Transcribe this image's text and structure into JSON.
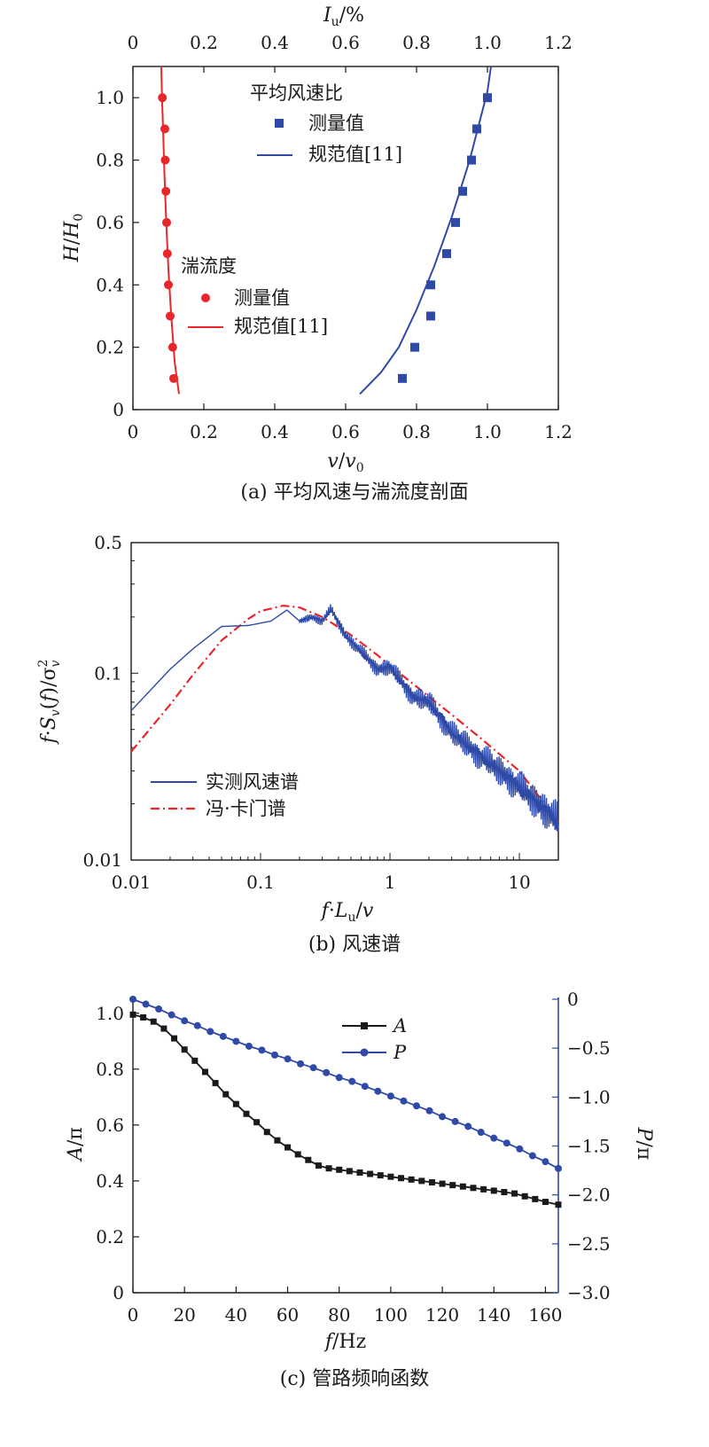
{
  "chart_data": [
    {
      "type": "scatter",
      "caption": "(a) 平均风速与湍流度剖面",
      "xlabel_bottom": "v/v0",
      "xlabel_top": "Iu/%",
      "ylabel": "H/H0",
      "xlim": [
        0,
        1.2
      ],
      "ylim": [
        0,
        1.1
      ],
      "xticks": [
        "0",
        "0.2",
        "0.4",
        "0.6",
        "0.8",
        "1.0",
        "1.2"
      ],
      "yticks": [
        "0",
        "0.2",
        "0.4",
        "0.6",
        "0.8",
        "1.0"
      ],
      "legend_groups": [
        {
          "title": "平均风速比",
          "color": "#2f4aa6",
          "measured_label": "测量值",
          "code_label": "规范值[11]",
          "measured": {
            "x": [
              0.76,
              0.795,
              0.84,
              0.84,
              0.885,
              0.91,
              0.93,
              0.955,
              0.97,
              1.0
            ],
            "y": [
              0.1,
              0.2,
              0.3,
              0.4,
              0.5,
              0.6,
              0.7,
              0.8,
              0.9,
              1.0
            ]
          },
          "code": {
            "x": [
              0.64,
              0.7,
              0.75,
              0.8,
              0.85,
              0.9,
              0.95,
              1.0,
              1.01
            ],
            "y": [
              0.05,
              0.12,
              0.2,
              0.32,
              0.46,
              0.62,
              0.8,
              1.02,
              1.1
            ]
          }
        },
        {
          "title": "湍流度",
          "color": "#e8262b",
          "measured_label": "测量值",
          "code_label": "规范值[11]",
          "measured": {
            "x": [
              0.115,
              0.112,
              0.105,
              0.1,
              0.097,
              0.095,
              0.093,
              0.091,
              0.09,
              0.083
            ],
            "y": [
              0.1,
              0.2,
              0.3,
              0.4,
              0.5,
              0.6,
              0.7,
              0.8,
              0.9,
              1.0
            ]
          },
          "code": {
            "x": [
              0.13,
              0.118,
              0.108,
              0.1,
              0.094,
              0.089,
              0.085,
              0.082,
              0.08
            ],
            "y": [
              0.05,
              0.15,
              0.3,
              0.45,
              0.6,
              0.75,
              0.9,
              1.0,
              1.1
            ]
          }
        }
      ]
    },
    {
      "type": "line",
      "caption": "(b) 风速谱",
      "xlabel": "f·Lu/v",
      "ylabel": "f·Sv(f)/σv2",
      "xscale": "log",
      "yscale": "log",
      "xlim": [
        0.01,
        20
      ],
      "ylim": [
        0.01,
        0.5
      ],
      "xticks": [
        "0.01",
        "0.1",
        "1",
        "10"
      ],
      "yticks": [
        "0.01",
        "0.1",
        "0.5"
      ],
      "legend_location": "lower-left",
      "series": [
        {
          "name": "实测风速谱",
          "color": "#2f4aa6",
          "style": "solid",
          "x": [
            0.01,
            0.02,
            0.03,
            0.05,
            0.08,
            0.12,
            0.16,
            0.2,
            0.25,
            0.3,
            0.35,
            0.45,
            0.6,
            0.8,
            1,
            1.5,
            2,
            3,
            5,
            8,
            12,
            20
          ],
          "y": [
            0.063,
            0.105,
            0.135,
            0.178,
            0.18,
            0.19,
            0.218,
            0.19,
            0.2,
            0.19,
            0.22,
            0.16,
            0.13,
            0.105,
            0.108,
            0.075,
            0.07,
            0.048,
            0.036,
            0.028,
            0.022,
            0.016
          ]
        },
        {
          "name": "冯·卡门谱",
          "color": "#e8262b",
          "style": "dash-dot",
          "x": [
            0.01,
            0.02,
            0.03,
            0.05,
            0.08,
            0.1,
            0.15,
            0.2,
            0.3,
            0.5,
            0.8,
            1,
            2,
            3,
            5,
            10,
            20
          ],
          "y": [
            0.038,
            0.068,
            0.098,
            0.15,
            0.195,
            0.215,
            0.23,
            0.225,
            0.2,
            0.16,
            0.125,
            0.11,
            0.075,
            0.06,
            0.045,
            0.03,
            0.016
          ]
        }
      ]
    },
    {
      "type": "line",
      "caption": "(c) 管路频响函数",
      "xlabel": "f/Hz",
      "ylabel_left": "A/π",
      "ylabel_right": "P/π",
      "xlim": [
        0,
        165
      ],
      "ylim_left": [
        0,
        1.05
      ],
      "ylim_right": [
        -3.0,
        0
      ],
      "xticks": [
        "0",
        "20",
        "40",
        "60",
        "80",
        "100",
        "120",
        "140",
        "160"
      ],
      "yticks_left": [
        "0",
        "0.2",
        "0.4",
        "0.6",
        "0.8",
        "1.0"
      ],
      "yticks_right": [
        "0",
        "−0.5",
        "−1.0",
        "−1.5",
        "−2.0",
        "−2.5",
        "−3.0"
      ],
      "series": [
        {
          "name": "A",
          "color": "#1a1a1a",
          "marker": "square",
          "axis": "left",
          "x": [
            0,
            4,
            8,
            12,
            16,
            20,
            24,
            28,
            32,
            36,
            40,
            44,
            48,
            52,
            56,
            60,
            64,
            68,
            72,
            76,
            80,
            84,
            88,
            92,
            96,
            100,
            104,
            108,
            112,
            116,
            120,
            124,
            128,
            132,
            136,
            140,
            144,
            148,
            152,
            156,
            160,
            165
          ],
          "y": [
            0.995,
            0.985,
            0.97,
            0.945,
            0.91,
            0.87,
            0.83,
            0.79,
            0.75,
            0.71,
            0.675,
            0.64,
            0.61,
            0.575,
            0.545,
            0.52,
            0.495,
            0.475,
            0.455,
            0.445,
            0.44,
            0.435,
            0.43,
            0.425,
            0.42,
            0.415,
            0.41,
            0.405,
            0.4,
            0.395,
            0.39,
            0.385,
            0.38,
            0.375,
            0.37,
            0.365,
            0.36,
            0.355,
            0.345,
            0.335,
            0.325,
            0.315
          ]
        },
        {
          "name": "P",
          "color": "#2f4aa6",
          "marker": "circle",
          "axis": "right",
          "x": [
            0,
            5,
            10,
            15,
            20,
            25,
            30,
            35,
            40,
            45,
            50,
            55,
            60,
            65,
            70,
            75,
            80,
            85,
            90,
            95,
            100,
            105,
            110,
            115,
            120,
            125,
            130,
            135,
            140,
            145,
            150,
            155,
            160,
            165
          ],
          "y": [
            0,
            -0.05,
            -0.1,
            -0.16,
            -0.22,
            -0.27,
            -0.33,
            -0.38,
            -0.43,
            -0.48,
            -0.52,
            -0.57,
            -0.61,
            -0.66,
            -0.7,
            -0.75,
            -0.8,
            -0.84,
            -0.89,
            -0.94,
            -0.99,
            -1.04,
            -1.09,
            -1.14,
            -1.2,
            -1.25,
            -1.3,
            -1.36,
            -1.42,
            -1.47,
            -1.53,
            -1.6,
            -1.66,
            -1.73
          ]
        }
      ]
    }
  ]
}
